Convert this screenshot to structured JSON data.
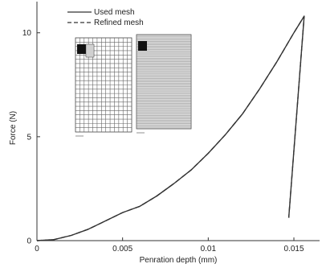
{
  "chart_data": {
    "type": "line",
    "xlabel": "Penration depth (mm)",
    "ylabel": "Force (N)",
    "xlim": [
      0,
      0.0165
    ],
    "ylim": [
      0,
      11.5
    ],
    "x_ticks": [
      {
        "value": 0,
        "label": "0"
      },
      {
        "value": 0.005,
        "label": "0.005"
      },
      {
        "value": 0.01,
        "label": "0.01"
      },
      {
        "value": 0.015,
        "label": "0.015"
      }
    ],
    "y_ticks": [
      {
        "value": 0,
        "label": "0"
      },
      {
        "value": 5,
        "label": "5"
      },
      {
        "value": 10,
        "label": "10"
      }
    ],
    "grid": false,
    "legend_position": "top-left",
    "series": [
      {
        "name": "Used mesh",
        "style": "solid",
        "color": "#333333",
        "points": [
          [
            0.0,
            0.0
          ],
          [
            0.001,
            0.05
          ],
          [
            0.002,
            0.25
          ],
          [
            0.003,
            0.55
          ],
          [
            0.004,
            0.95
          ],
          [
            0.005,
            1.35
          ],
          [
            0.006,
            1.65
          ],
          [
            0.007,
            2.15
          ],
          [
            0.008,
            2.75
          ],
          [
            0.009,
            3.4
          ],
          [
            0.01,
            4.2
          ],
          [
            0.011,
            5.1
          ],
          [
            0.012,
            6.1
          ],
          [
            0.013,
            7.3
          ],
          [
            0.014,
            8.6
          ],
          [
            0.015,
            10.0
          ],
          [
            0.0156,
            10.8
          ],
          [
            0.0147,
            1.1
          ]
        ]
      },
      {
        "name": "Refined mesh",
        "style": "dashed",
        "color": "#333333",
        "points": [
          [
            0.0,
            0.0
          ],
          [
            0.001,
            0.05
          ],
          [
            0.002,
            0.25
          ],
          [
            0.003,
            0.55
          ],
          [
            0.004,
            0.95
          ],
          [
            0.005,
            1.35
          ],
          [
            0.006,
            1.65
          ],
          [
            0.007,
            2.15
          ],
          [
            0.008,
            2.75
          ],
          [
            0.009,
            3.4
          ],
          [
            0.01,
            4.2
          ],
          [
            0.011,
            5.1
          ],
          [
            0.012,
            6.1
          ],
          [
            0.013,
            7.3
          ],
          [
            0.014,
            8.6
          ],
          [
            0.015,
            10.0
          ],
          [
            0.0156,
            10.8
          ],
          [
            0.0147,
            1.1
          ]
        ]
      }
    ],
    "insets": [
      {
        "name": "coarse-mesh",
        "cols": 13,
        "rows": 22,
        "has_zoom_box": true
      },
      {
        "name": "fine-mesh",
        "cols": 34,
        "rows": 56,
        "has_zoom_box": false
      }
    ]
  }
}
